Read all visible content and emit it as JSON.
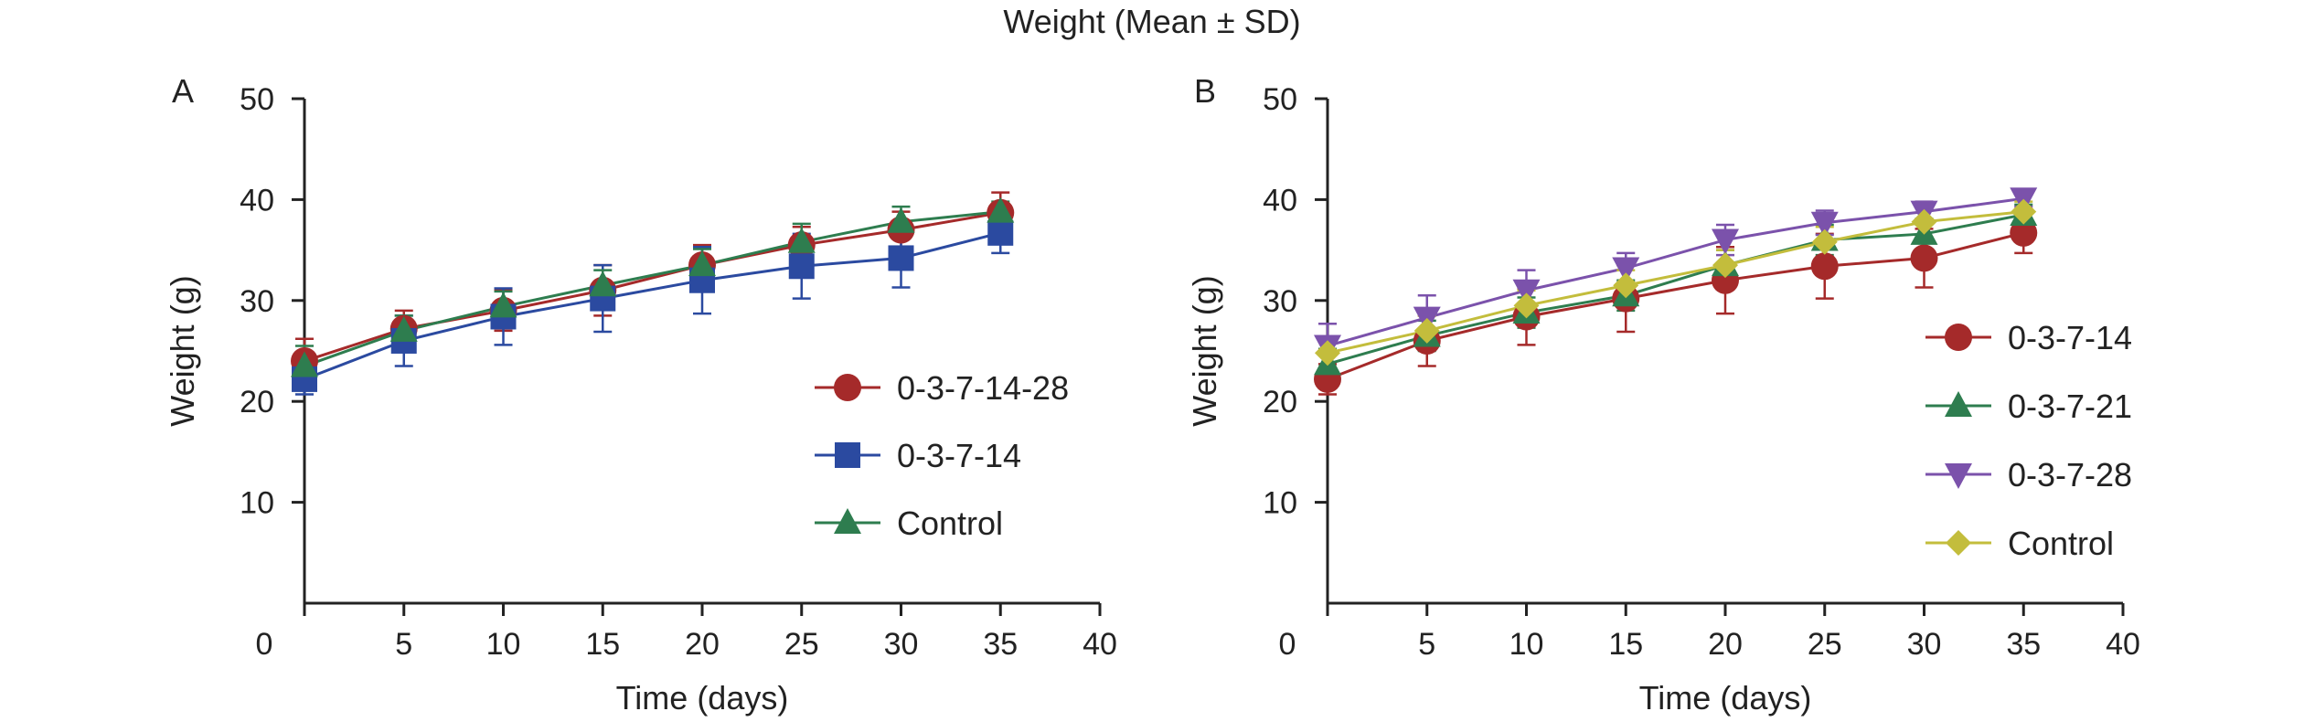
{
  "title": "Weight (Mean ± SD)",
  "chart_data": [
    {
      "panel": "A",
      "type": "line",
      "xlabel": "Time (days)",
      "ylabel": "Weight (g)",
      "xlim": [
        0,
        40
      ],
      "ylim": [
        0,
        50
      ],
      "xticks": [
        0,
        5,
        10,
        15,
        20,
        25,
        30,
        35,
        40
      ],
      "yticks": [
        10,
        20,
        30,
        40,
        50
      ],
      "x": [
        0,
        5,
        10,
        15,
        20,
        25,
        30,
        35
      ],
      "legend_position": "right",
      "series": [
        {
          "name": "0-3-7-14-28",
          "marker": "circle",
          "color": "#a52a2a",
          "values": [
            24.0,
            27.2,
            29.0,
            31.0,
            33.5,
            35.5,
            37.0,
            38.7
          ],
          "sd": [
            2.2,
            1.8,
            2.0,
            2.5,
            2.0,
            1.8,
            1.8,
            2.0
          ]
        },
        {
          "name": "0-3-7-14",
          "marker": "square",
          "color": "#2b4aa0",
          "values": [
            22.2,
            26.0,
            28.4,
            30.2,
            32.0,
            33.4,
            34.2,
            36.7
          ],
          "sd": [
            1.5,
            2.5,
            2.8,
            3.3,
            3.3,
            3.2,
            2.9,
            2.0
          ]
        },
        {
          "name": "Control",
          "marker": "triangle-up",
          "color": "#2e7d4f",
          "values": [
            23.5,
            27.0,
            29.4,
            31.5,
            33.5,
            35.8,
            37.8,
            38.8
          ],
          "sd": [
            2.0,
            1.5,
            1.5,
            1.5,
            1.6,
            1.8,
            1.5,
            1.0
          ]
        }
      ]
    },
    {
      "panel": "B",
      "type": "line",
      "xlabel": "Time (days)",
      "ylabel": "Weight (g)",
      "xlim": [
        0,
        40
      ],
      "ylim": [
        0,
        50
      ],
      "xticks": [
        0,
        5,
        10,
        15,
        20,
        25,
        30,
        35,
        40
      ],
      "yticks": [
        10,
        20,
        30,
        40,
        50
      ],
      "x": [
        0,
        5,
        10,
        15,
        20,
        25,
        30,
        35
      ],
      "legend_position": "right",
      "series": [
        {
          "name": "0-3-7-14",
          "marker": "circle",
          "color": "#a52a2a",
          "values": [
            22.2,
            26.0,
            28.4,
            30.2,
            32.0,
            33.4,
            34.2,
            36.7
          ],
          "sd": [
            1.5,
            2.5,
            2.8,
            3.3,
            3.3,
            3.2,
            2.9,
            2.0
          ]
        },
        {
          "name": "0-3-7-21",
          "marker": "triangle-up",
          "color": "#2e7d4f",
          "values": [
            23.7,
            26.5,
            28.8,
            30.5,
            33.5,
            36.0,
            36.6,
            38.5
          ],
          "sd": [
            1.5,
            1.5,
            1.5,
            1.5,
            1.5,
            1.5,
            1.5,
            1.0
          ]
        },
        {
          "name": "0-3-7-28",
          "marker": "triangle-down",
          "color": "#7b52ab",
          "values": [
            25.5,
            28.3,
            31.0,
            33.2,
            36.0,
            37.7,
            38.8,
            40.1
          ],
          "sd": [
            2.2,
            2.2,
            2.0,
            1.5,
            1.5,
            1.2,
            1.0,
            0.8
          ]
        },
        {
          "name": "Control",
          "marker": "diamond",
          "color": "#c3bd3c",
          "values": [
            24.8,
            27.0,
            29.5,
            31.5,
            33.5,
            35.8,
            37.8,
            38.8
          ],
          "sd": [
            1.5,
            1.5,
            1.5,
            1.5,
            1.5,
            1.5,
            1.5,
            1.0
          ]
        }
      ]
    }
  ]
}
